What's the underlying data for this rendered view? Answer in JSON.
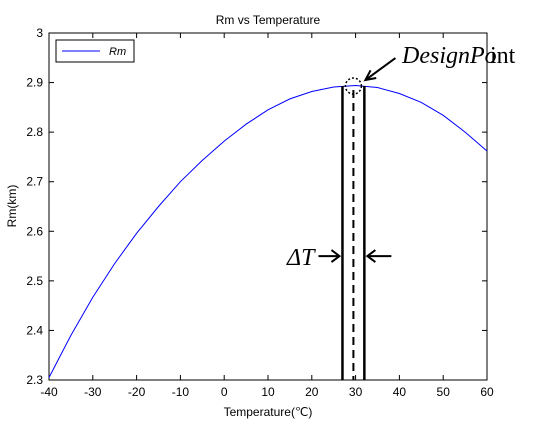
{
  "chart_data": {
    "type": "line",
    "title": "Rm vs Temperature",
    "xlabel": "Temperature(℃)",
    "ylabel": "Rm(km)",
    "xlim": [
      -40,
      60
    ],
    "ylim": [
      2.3,
      3.0
    ],
    "xticks": [
      -40,
      -30,
      -20,
      -10,
      0,
      10,
      20,
      30,
      40,
      50,
      60
    ],
    "yticks": [
      2.3,
      2.4,
      2.5,
      2.6,
      2.7,
      2.8,
      2.9,
      3.0
    ],
    "ytick_labels": [
      "2.3",
      "2.4",
      "2.5",
      "2.6",
      "2.7",
      "2.8",
      "2.9",
      "3"
    ],
    "grid": false,
    "legend": {
      "position": "top-left",
      "entries": [
        "Rm"
      ]
    },
    "series": [
      {
        "name": "Rm",
        "color": "#0000ff",
        "x": [
          -40,
          -35,
          -30,
          -25,
          -20,
          -15,
          -10,
          -5,
          0,
          5,
          10,
          15,
          20,
          25,
          30,
          35,
          40,
          45,
          50,
          55,
          60
        ],
        "y": [
          2.305,
          2.39,
          2.467,
          2.535,
          2.596,
          2.65,
          2.7,
          2.743,
          2.782,
          2.816,
          2.845,
          2.867,
          2.882,
          2.891,
          2.894,
          2.89,
          2.878,
          2.86,
          2.834,
          2.8,
          2.762
        ]
      }
    ],
    "annotations": {
      "design_point_label": "DesignPo",
      "design_point_label_suffix": "int",
      "design_point": {
        "x": 29.5,
        "y": 2.893
      },
      "delta_label": "ΔT",
      "delta_left_x": 27,
      "delta_right_x": 32,
      "delta_center_x": 29.5,
      "delta_arrow_y": 2.55
    }
  }
}
